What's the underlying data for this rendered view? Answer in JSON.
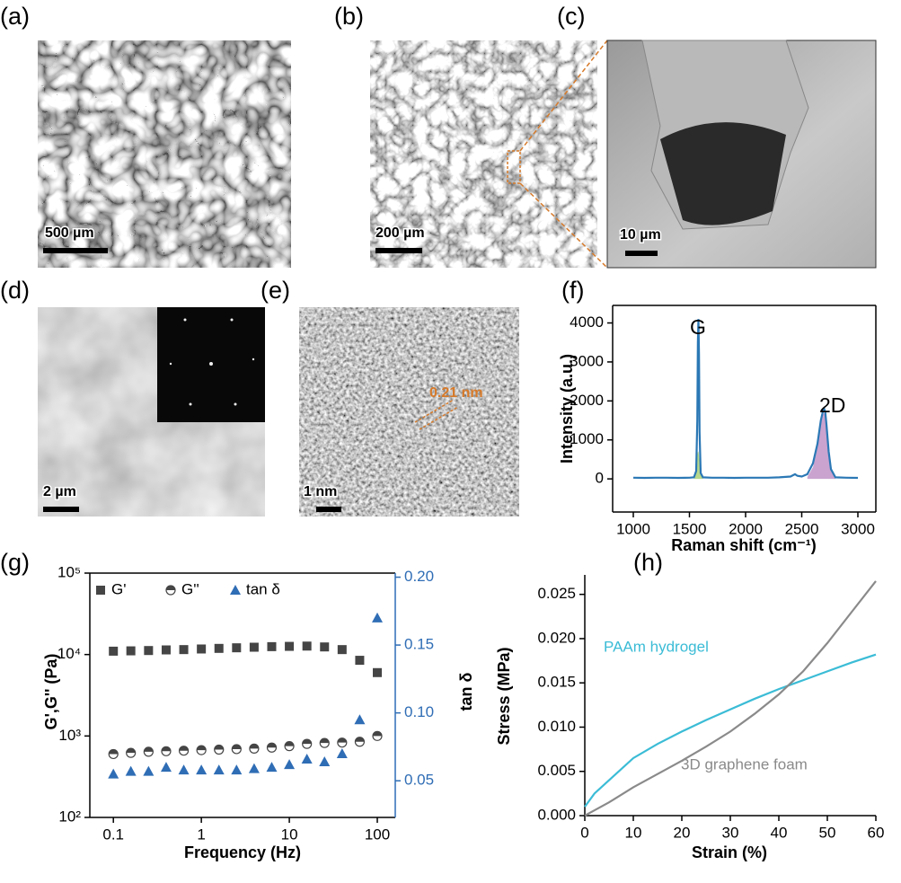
{
  "panels": [
    {
      "label": "(a)",
      "scale_bar": "500 µm"
    },
    {
      "label": "(b)",
      "scale_bar": "200 µm"
    },
    {
      "label": "(c)",
      "scale_bar": "10 µm"
    },
    {
      "label": "(d)",
      "scale_bar": "2 µm"
    },
    {
      "label": "(e)",
      "scale_bar": "1 nm",
      "annotation": "0.21 nm"
    },
    {
      "label": "(f)"
    },
    {
      "label": "(g)"
    },
    {
      "label": "(h)"
    }
  ],
  "chart_data": [
    {
      "type": "line",
      "x_label": "Raman shift (cm⁻¹)",
      "y_label": "Intensity (a.u.)",
      "annotations": [
        "G",
        "2D"
      ],
      "x": [
        1000,
        1100,
        1200,
        1300,
        1400,
        1500,
        1540,
        1560,
        1570,
        1575,
        1580,
        1585,
        1590,
        1600,
        1620,
        1700,
        1800,
        1900,
        2000,
        2100,
        2200,
        2300,
        2400,
        2440,
        2460,
        2500,
        2550,
        2600,
        2640,
        2670,
        2690,
        2700,
        2710,
        2720,
        2740,
        2760,
        2800,
        2900,
        3000
      ],
      "series": [
        {
          "color": "#b8d98c",
          "fill": true,
          "values": [
            null,
            null,
            null,
            null,
            null,
            null,
            20,
            150,
            600,
            700,
            700,
            600,
            400,
            100,
            20,
            null,
            null,
            null,
            null,
            null,
            null,
            null,
            null,
            null,
            null,
            null,
            null,
            null,
            null,
            null,
            null,
            null,
            null,
            null,
            null,
            null,
            null,
            null,
            null
          ]
        },
        {
          "color": "#caa3cf",
          "fill": true,
          "values": [
            null,
            null,
            null,
            null,
            null,
            null,
            null,
            null,
            null,
            null,
            null,
            null,
            null,
            null,
            null,
            null,
            null,
            null,
            null,
            null,
            null,
            null,
            null,
            null,
            null,
            null,
            50,
            300,
            800,
            1400,
            1650,
            1700,
            1600,
            1350,
            650,
            200,
            20,
            null,
            null
          ]
        },
        {
          "color": "#2b78b5",
          "values": [
            30,
            25,
            30,
            30,
            25,
            30,
            40,
            200,
            1500,
            3500,
            4100,
            3200,
            1200,
            150,
            40,
            30,
            30,
            25,
            30,
            30,
            30,
            40,
            60,
            120,
            80,
            60,
            120,
            400,
            900,
            1500,
            1750,
            1800,
            1700,
            1400,
            700,
            250,
            40,
            30,
            25
          ]
        }
      ],
      "xlim": [
        816,
        3160
      ],
      "ylim": [
        -850,
        4450
      ],
      "xticks": [
        1000,
        1500,
        2000,
        2500,
        3000
      ],
      "yticks": [
        0,
        1000,
        2000,
        3000,
        4000
      ],
      "box": true
    },
    {
      "type": "scatter",
      "x_label": "Frequency (Hz)",
      "y_label": "G',G'' (Pa)",
      "y2_label": "tan δ",
      "x_scale": "log",
      "y_scale": "log",
      "legend": "upper left",
      "x": [
        0.1,
        0.158,
        0.251,
        0.398,
        0.631,
        1,
        1.585,
        2.512,
        3.981,
        6.31,
        10,
        15.85,
        25.12,
        39.81,
        63.1,
        100
      ],
      "series": [
        {
          "name": "G'",
          "color": "#454545",
          "marker": "square",
          "values": [
            11000,
            11100,
            11200,
            11400,
            11500,
            11700,
            11900,
            12100,
            12300,
            12500,
            12600,
            12700,
            12400,
            11500,
            8500,
            6000
          ]
        },
        {
          "name": "G''",
          "color": "#454545",
          "marker": "half-circle",
          "values": [
            600,
            620,
            640,
            650,
            660,
            670,
            680,
            690,
            700,
            720,
            750,
            800,
            820,
            830,
            850,
            1000
          ]
        },
        {
          "name": "tan δ",
          "color": "#2f6db5",
          "marker": "triangle",
          "axis": "y2",
          "values": [
            0.055,
            0.057,
            0.057,
            0.06,
            0.058,
            0.058,
            0.058,
            0.058,
            0.059,
            0.06,
            0.062,
            0.066,
            0.064,
            0.07,
            0.095,
            0.17
          ]
        }
      ],
      "xlim": [
        0.054,
        160
      ],
      "ylim": [
        100,
        100000
      ],
      "y2lim": [
        0.023,
        0.203
      ],
      "xticks": [
        0.1,
        1,
        10,
        100
      ],
      "yticks": [
        {
          "value": 100,
          "label": "10²"
        },
        {
          "value": 1000,
          "label": "10³"
        },
        {
          "value": 10000,
          "label": "10⁴"
        },
        {
          "value": 100000,
          "label": "10⁵"
        }
      ],
      "y2ticks": [
        0.05,
        {
          "value": 0.1,
          "label": "0.10"
        },
        0.15,
        {
          "value": 0.2,
          "label": "0.20"
        }
      ],
      "box": true
    },
    {
      "type": "line",
      "x_label": "Strain (%)",
      "y_label": "Stress (MPa)",
      "x": [
        0,
        2,
        5,
        10,
        15,
        20,
        25,
        30,
        35,
        40,
        45,
        50,
        55,
        60
      ],
      "series": [
        {
          "name": "PAAm hydrogel",
          "color": "#3bbcd6",
          "values": [
            0.001,
            0.0025,
            0.004,
            0.0065,
            0.0081,
            0.0095,
            0.0108,
            0.012,
            0.0132,
            0.0143,
            0.0153,
            0.0163,
            0.0173,
            0.0182
          ]
        },
        {
          "name": "3D graphene foam",
          "color": "#8a8a8a",
          "values": [
            0,
            0.0006,
            0.0015,
            0.0032,
            0.0047,
            0.0062,
            0.0078,
            0.0095,
            0.0115,
            0.0137,
            0.0163,
            0.0195,
            0.023,
            0.0265
          ]
        }
      ],
      "xlim": [
        0,
        60
      ],
      "ylim": [
        0,
        0.0272
      ],
      "xticks": [
        0,
        10,
        20,
        30,
        40,
        50,
        60
      ],
      "yticks": [
        {
          "value": 0,
          "label": "0.000"
        },
        0.005,
        {
          "value": 0.01,
          "label": "0.010"
        },
        0.015,
        {
          "value": 0.02,
          "label": "0.020"
        },
        0.025
      ],
      "box": false
    }
  ]
}
